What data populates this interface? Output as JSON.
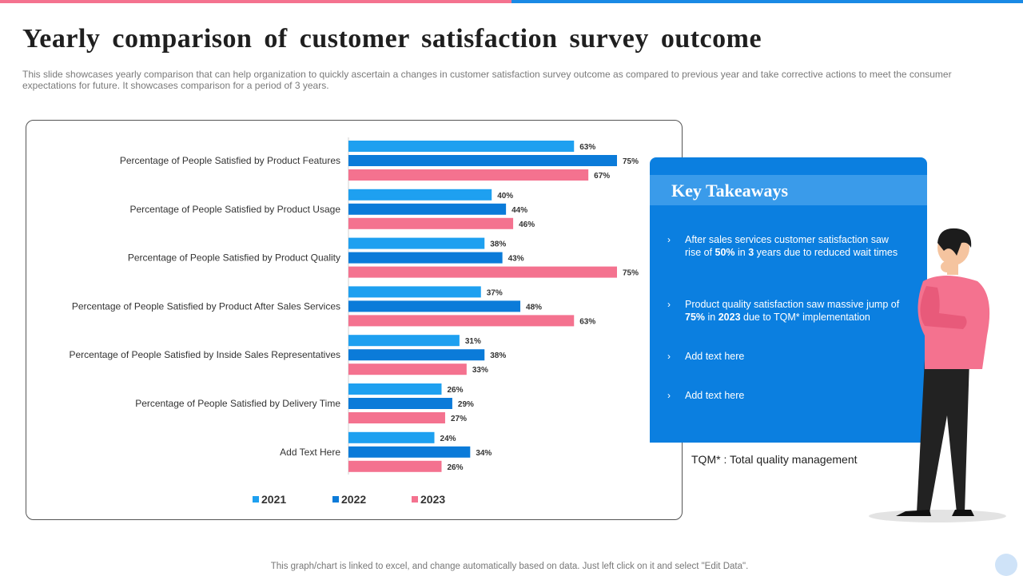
{
  "title": "Yearly comparison of customer satisfaction survey outcome",
  "subtitle": "This slide showcases yearly comparison that can help organization to quickly ascertain a changes in customer satisfaction survey outcome as compared to previous year and take corrective actions to meet the consumer expectations for future. It showcases comparison for a period of 3 years.",
  "colors": {
    "pink": "#f4728f",
    "blue": "#1a8ae5",
    "s2021": "#1ea0f0",
    "s2022": "#0b7bd9",
    "s2023": "#f4728f",
    "card": "#0b7fe0"
  },
  "chart_data": {
    "type": "bar",
    "orientation": "horizontal",
    "categories": [
      "Percentage of People Satisfied by Product Features",
      "Percentage of People Satisfied by Product Usage",
      "Percentage of People Satisfied by Product Quality",
      "Percentage of People Satisfied by Product After Sales Services",
      "Percentage of People Satisfied by Inside Sales Representatives",
      "Percentage of People Satisfied by Delivery Time",
      "Add Text Here"
    ],
    "series": [
      {
        "name": "2021",
        "values": [
          63,
          40,
          38,
          37,
          31,
          26,
          24
        ]
      },
      {
        "name": "2022",
        "values": [
          75,
          44,
          43,
          48,
          38,
          29,
          34
        ]
      },
      {
        "name": "2023",
        "values": [
          67,
          46,
          75,
          63,
          33,
          27,
          26
        ]
      }
    ],
    "value_suffix": "%",
    "xlim": [
      0,
      100
    ],
    "legend_position": "bottom"
  },
  "takeaways": {
    "title": "Key Takeaways",
    "bullet": "›",
    "items": [
      {
        "pre": "After sales services customer satisfaction saw rise of ",
        "b1": "50%",
        "mid": " in ",
        "b2": "3",
        "post": " years due to reduced wait times"
      },
      {
        "pre": "Product quality satisfaction saw massive jump of ",
        "b1": "75%",
        "mid": " in ",
        "b2": "2023",
        "post": " due to TQM* implementation"
      },
      {
        "text": "Add text here"
      },
      {
        "text": "Add text here"
      }
    ]
  },
  "tqm_note": "TQM* : Total quality management",
  "footer": "This graph/chart is linked to excel, and change automatically based on data. Just left click on it and select \"Edit Data\"."
}
